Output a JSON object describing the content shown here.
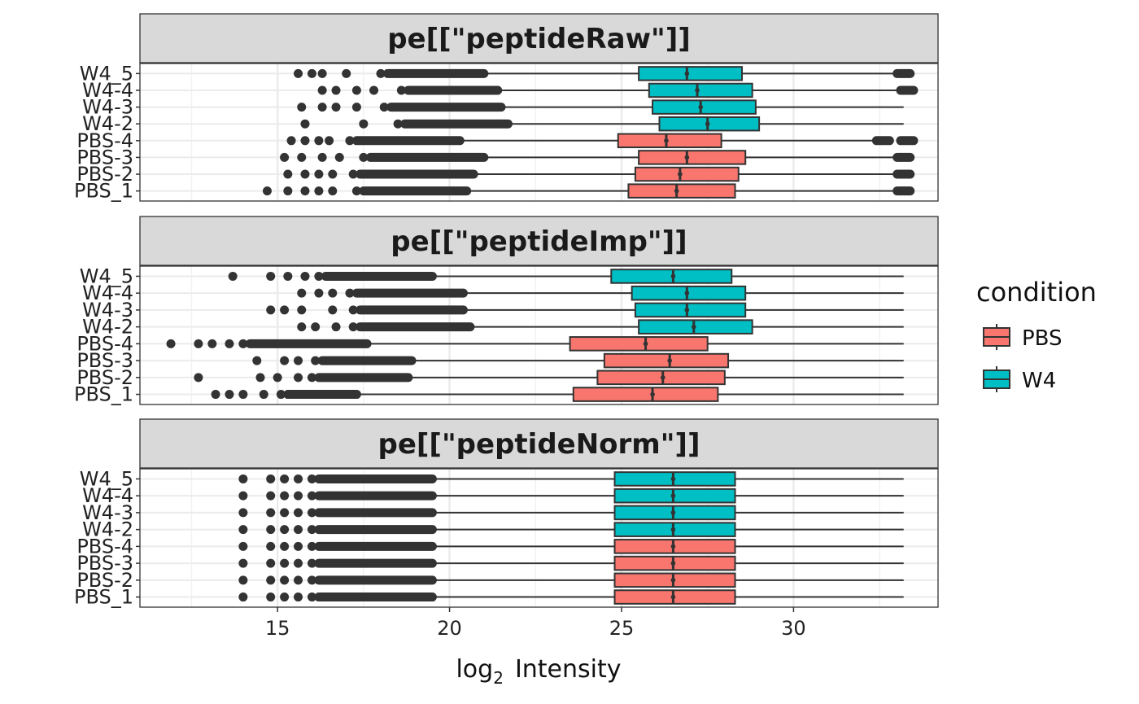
{
  "chart_data": {
    "type": "boxplot",
    "orientation": "horizontal",
    "xlabel_main": "log",
    "xlabel_sub": "2",
    "xlabel_rest": "Intensity",
    "xlim": [
      11,
      34.2
    ],
    "xticks": [
      15,
      20,
      25,
      30
    ],
    "grid": true,
    "legend": {
      "title": "condition",
      "position": "right",
      "entries": [
        {
          "label": "PBS",
          "color": "#F8766D"
        },
        {
          "label": "W4",
          "color": "#00BFC4"
        }
      ]
    },
    "samples": [
      "W4_5",
      "W4-4",
      "W4-3",
      "W4-2",
      "PBS-4",
      "PBS-3",
      "PBS-2",
      "PBS_1"
    ],
    "panels": [
      {
        "title": "pe[[\"peptideRaw\"]]",
        "boxes": [
          {
            "sample": "W4_5",
            "condition": "W4",
            "q1": 25.5,
            "median": 26.9,
            "q3": 28.5,
            "whisker_low": 21.1,
            "whisker_high": 33.1,
            "outlier_low": [
              15.6,
              16.0,
              16.3,
              17.0,
              18.0
            ],
            "outlier_low_max": 21.0,
            "outlier_high": [
              33.2
            ]
          },
          {
            "sample": "W4-4",
            "condition": "W4",
            "q1": 25.8,
            "median": 27.2,
            "q3": 28.8,
            "whisker_low": 21.5,
            "whisker_high": 33.1,
            "outlier_low": [
              16.3,
              16.7,
              17.3,
              17.8,
              18.6
            ],
            "outlier_low_max": 21.4,
            "outlier_high": [
              33.3
            ]
          },
          {
            "sample": "W4-3",
            "condition": "W4",
            "q1": 25.9,
            "median": 27.3,
            "q3": 28.9,
            "whisker_low": 21.6,
            "whisker_high": 33.2,
            "outlier_low": [
              15.7,
              16.3,
              16.7,
              17.3,
              18.1
            ],
            "outlier_low_max": 21.5,
            "outlier_high": []
          },
          {
            "sample": "W4-2",
            "condition": "W4",
            "q1": 26.1,
            "median": 27.5,
            "q3": 29.0,
            "whisker_low": 21.8,
            "whisker_high": 33.2,
            "outlier_low": [
              15.8,
              17.5,
              18.5
            ],
            "outlier_low_max": 21.7,
            "outlier_high": []
          },
          {
            "sample": "PBS-4",
            "condition": "PBS",
            "q1": 24.9,
            "median": 26.3,
            "q3": 27.9,
            "whisker_low": 20.4,
            "whisker_high": 32.5,
            "outlier_low": [
              15.4,
              15.8,
              16.2,
              16.5,
              17.1
            ],
            "outlier_low_max": 20.3,
            "outlier_high": [
              32.6,
              33.3
            ]
          },
          {
            "sample": "PBS-3",
            "condition": "PBS",
            "q1": 25.5,
            "median": 26.9,
            "q3": 28.6,
            "whisker_low": 21.1,
            "whisker_high": 33.1,
            "outlier_low": [
              15.2,
              15.7,
              16.3,
              16.8,
              17.5
            ],
            "outlier_low_max": 21.0,
            "outlier_high": [
              33.2
            ]
          },
          {
            "sample": "PBS-2",
            "condition": "PBS",
            "q1": 25.4,
            "median": 26.7,
            "q3": 28.4,
            "whisker_low": 20.8,
            "whisker_high": 33.1,
            "outlier_low": [
              15.3,
              15.8,
              16.2,
              16.6,
              17.2
            ],
            "outlier_low_max": 20.7,
            "outlier_high": [
              33.2
            ]
          },
          {
            "sample": "PBS_1",
            "condition": "PBS",
            "q1": 25.2,
            "median": 26.6,
            "q3": 28.3,
            "whisker_low": 20.6,
            "whisker_high": 33.1,
            "outlier_low": [
              14.7,
              15.3,
              15.8,
              16.2,
              16.6,
              17.3
            ],
            "outlier_low_max": 20.5,
            "outlier_high": [
              33.2
            ]
          }
        ]
      },
      {
        "title": "pe[[\"peptideImp\"]]",
        "boxes": [
          {
            "sample": "W4_5",
            "condition": "W4",
            "q1": 24.7,
            "median": 26.5,
            "q3": 28.2,
            "whisker_low": 19.6,
            "whisker_high": 33.2,
            "outlier_low": [
              13.7,
              14.8,
              15.3,
              15.8,
              16.2
            ],
            "outlier_low_max": 19.5,
            "outlier_high": []
          },
          {
            "sample": "W4-4",
            "condition": "W4",
            "q1": 25.3,
            "median": 26.9,
            "q3": 28.6,
            "whisker_low": 20.5,
            "whisker_high": 33.2,
            "outlier_low": [
              15.7,
              16.2,
              16.6,
              17.1
            ],
            "outlier_low_max": 20.4,
            "outlier_high": []
          },
          {
            "sample": "W4-3",
            "condition": "W4",
            "q1": 25.4,
            "median": 26.9,
            "q3": 28.6,
            "whisker_low": 20.5,
            "whisker_high": 33.2,
            "outlier_low": [
              14.8,
              15.2,
              15.7,
              16.6,
              17.2
            ],
            "outlier_low_max": 20.4,
            "outlier_high": []
          },
          {
            "sample": "W4-2",
            "condition": "W4",
            "q1": 25.5,
            "median": 27.1,
            "q3": 28.8,
            "whisker_low": 20.7,
            "whisker_high": 33.2,
            "outlier_low": [
              15.7,
              16.1,
              16.7,
              17.2
            ],
            "outlier_low_max": 20.6,
            "outlier_high": []
          },
          {
            "sample": "PBS-4",
            "condition": "PBS",
            "q1": 23.5,
            "median": 25.7,
            "q3": 27.5,
            "whisker_low": 17.7,
            "whisker_high": 33.2,
            "outlier_low": [
              11.9,
              12.7,
              13.1,
              13.6,
              14.0
            ],
            "outlier_low_max": 17.6,
            "outlier_high": []
          },
          {
            "sample": "PBS-3",
            "condition": "PBS",
            "q1": 24.5,
            "median": 26.4,
            "q3": 28.1,
            "whisker_low": 19.0,
            "whisker_high": 33.2,
            "outlier_low": [
              14.4,
              15.2,
              15.6,
              16.1
            ],
            "outlier_low_max": 18.9,
            "outlier_high": []
          },
          {
            "sample": "PBS-2",
            "condition": "PBS",
            "q1": 24.3,
            "median": 26.2,
            "q3": 28.0,
            "whisker_low": 18.9,
            "whisker_high": 33.2,
            "outlier_low": [
              12.7,
              14.5,
              15.0,
              15.6,
              16.0
            ],
            "outlier_low_max": 18.8,
            "outlier_high": []
          },
          {
            "sample": "PBS_1",
            "condition": "PBS",
            "q1": 23.6,
            "median": 25.9,
            "q3": 27.8,
            "whisker_low": 17.4,
            "whisker_high": 33.2,
            "outlier_low": [
              13.2,
              13.6,
              14.0,
              14.6,
              15.1
            ],
            "outlier_low_max": 17.3,
            "outlier_high": []
          }
        ]
      },
      {
        "title": "pe[[\"peptideNorm\"]]",
        "boxes": [
          {
            "sample": "W4_5",
            "condition": "W4",
            "q1": 24.8,
            "median": 26.5,
            "q3": 28.3,
            "whisker_low": 19.6,
            "whisker_high": 33.2,
            "outlier_low": [
              14.0,
              14.8,
              15.2,
              15.6,
              16.0
            ],
            "outlier_low_max": 19.5,
            "outlier_high": []
          },
          {
            "sample": "W4-4",
            "condition": "W4",
            "q1": 24.8,
            "median": 26.5,
            "q3": 28.3,
            "whisker_low": 19.6,
            "whisker_high": 33.2,
            "outlier_low": [
              14.0,
              14.8,
              15.2,
              15.6,
              16.0
            ],
            "outlier_low_max": 19.5,
            "outlier_high": []
          },
          {
            "sample": "W4-3",
            "condition": "W4",
            "q1": 24.8,
            "median": 26.5,
            "q3": 28.3,
            "whisker_low": 19.6,
            "whisker_high": 33.2,
            "outlier_low": [
              14.0,
              14.8,
              15.2,
              15.6,
              16.0
            ],
            "outlier_low_max": 19.5,
            "outlier_high": []
          },
          {
            "sample": "W4-2",
            "condition": "W4",
            "q1": 24.8,
            "median": 26.5,
            "q3": 28.3,
            "whisker_low": 19.6,
            "whisker_high": 33.2,
            "outlier_low": [
              14.0,
              14.8,
              15.2,
              15.6,
              16.0
            ],
            "outlier_low_max": 19.5,
            "outlier_high": []
          },
          {
            "sample": "PBS-4",
            "condition": "PBS",
            "q1": 24.8,
            "median": 26.5,
            "q3": 28.3,
            "whisker_low": 19.6,
            "whisker_high": 33.2,
            "outlier_low": [
              14.0,
              14.8,
              15.2,
              15.6,
              16.0
            ],
            "outlier_low_max": 19.5,
            "outlier_high": []
          },
          {
            "sample": "PBS-3",
            "condition": "PBS",
            "q1": 24.8,
            "median": 26.5,
            "q3": 28.3,
            "whisker_low": 19.6,
            "whisker_high": 33.2,
            "outlier_low": [
              14.0,
              14.8,
              15.2,
              15.6,
              16.0
            ],
            "outlier_low_max": 19.5,
            "outlier_high": []
          },
          {
            "sample": "PBS-2",
            "condition": "PBS",
            "q1": 24.8,
            "median": 26.5,
            "q3": 28.3,
            "whisker_low": 19.6,
            "whisker_high": 33.2,
            "outlier_low": [
              14.0,
              14.8,
              15.2,
              15.6,
              16.0
            ],
            "outlier_low_max": 19.5,
            "outlier_high": []
          },
          {
            "sample": "PBS_1",
            "condition": "PBS",
            "q1": 24.8,
            "median": 26.5,
            "q3": 28.3,
            "whisker_low": 19.6,
            "whisker_high": 33.2,
            "outlier_low": [
              14.0,
              14.8,
              15.2,
              15.6,
              16.0
            ],
            "outlier_low_max": 19.5,
            "outlier_high": []
          }
        ]
      }
    ]
  }
}
